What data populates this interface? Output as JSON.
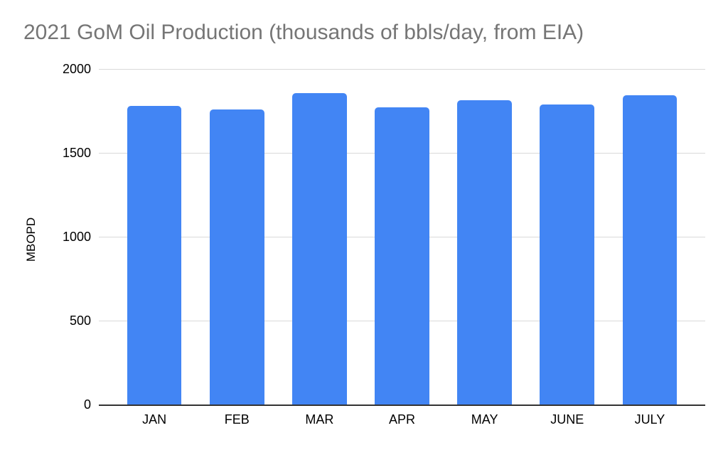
{
  "chart_data": {
    "type": "bar",
    "title": "2021 GoM Oil Production (thousands of bbls/day, from EIA)",
    "xlabel": "",
    "ylabel": "MBOPD",
    "categories": [
      "JAN",
      "FEB",
      "MAR",
      "APR",
      "MAY",
      "JUNE",
      "JULY"
    ],
    "values": [
      1780,
      1760,
      1855,
      1770,
      1815,
      1790,
      1845
    ],
    "ylim": [
      0,
      2000
    ],
    "yticks": [
      0,
      500,
      1000,
      1500,
      2000
    ],
    "grid": true,
    "legend": false,
    "colors": {
      "bar": "#4285f4",
      "gridline": "#d9d9d9",
      "axis_line": "#333333",
      "title_text": "#757575",
      "tick_text": "#000000"
    }
  }
}
